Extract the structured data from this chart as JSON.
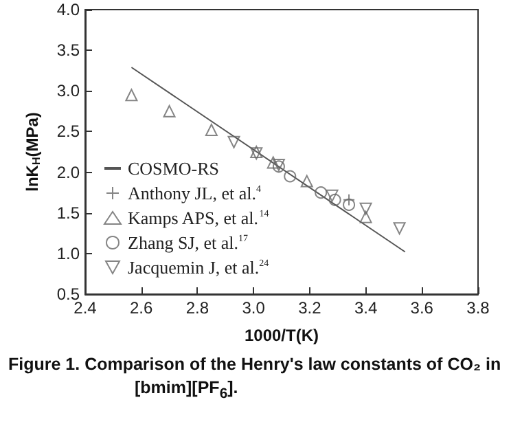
{
  "chart_data": {
    "type": "scatter",
    "title": "Figure 1. Comparison of the Henry's law constants of CO₂ in [bmim][PF$_{6}$].",
    "xlabel": "1000/T(K)",
    "ylabel": "lnK$_{H}$(MPa)",
    "xlim": [
      2.4,
      3.8
    ],
    "ylim": [
      0.5,
      4.0
    ],
    "xticks": [
      2.4,
      2.6,
      2.8,
      {
        "value": 3,
        "label": "3.0"
      },
      3.2,
      3.4,
      3.6,
      3.8
    ],
    "yticks": [
      0.5,
      {
        "value": 1,
        "label": "1.0"
      },
      1.5,
      {
        "value": 2,
        "label": "2.0"
      },
      2.5,
      {
        "value": 3,
        "label": "3.0"
      },
      3.5,
      {
        "value": 4,
        "label": "4.0"
      }
    ],
    "grid": false,
    "legend": "bottom left",
    "series": [
      {
        "name": "COSMO-RS",
        "type": "line",
        "marker": "none",
        "color": "#555555",
        "x": [
          2.565,
          3.54
        ],
        "values": [
          3.29,
          1.02
        ]
      },
      {
        "name": "Anthony JL, et al.$^{4}$",
        "marker": "cross",
        "color": "#666666",
        "x": [
          3.34
        ],
        "values": [
          1.66
        ]
      },
      {
        "name": "Kamps APS, et al.$^{14}$",
        "marker": "triangle",
        "color": "#666666",
        "x": [
          2.565,
          2.7,
          2.85,
          3.01,
          3.07,
          3.19,
          3.4
        ],
        "values": [
          2.95,
          2.75,
          2.52,
          2.25,
          2.12,
          1.89,
          1.45
        ]
      },
      {
        "name": "Zhang SJ, et al.$^{17}$",
        "marker": "circle",
        "color": "#666666",
        "x": [
          3.09,
          3.13,
          3.24,
          3.29,
          3.34
        ],
        "values": [
          2.07,
          1.95,
          1.75,
          1.66,
          1.6
        ]
      },
      {
        "name": "Jacquemin J, et al.$^{24}$",
        "marker": "triangle-down",
        "color": "#666666",
        "x": [
          2.93,
          3.01,
          3.09,
          3.28,
          3.4,
          3.52
        ],
        "values": [
          2.37,
          2.23,
          2.09,
          1.71,
          1.55,
          1.31
        ]
      }
    ]
  }
}
